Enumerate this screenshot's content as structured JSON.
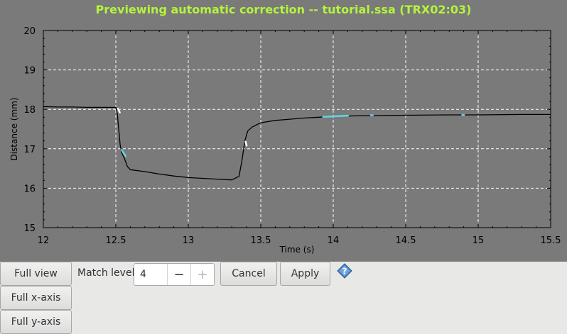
{
  "window_title": "Previewing automatic correction -- tutorial.ssa (TRX02:03)",
  "title_color": "#b4f53a",
  "plot_background": "#7a7a7a",
  "highlight_color": "#5fd6e8",
  "chart_data": {
    "type": "line",
    "xlabel": "Time (s)",
    "ylabel": "Distance (mm)",
    "xlim": [
      12,
      15.5
    ],
    "ylim": [
      15,
      20
    ],
    "xticks": [
      12,
      12.5,
      13,
      13.5,
      14,
      14.5,
      15,
      15.5
    ],
    "xtick_labels": [
      "12",
      "12.5",
      "13",
      "13.5",
      "14",
      "14.5",
      "15",
      "15.5"
    ],
    "yticks": [
      15,
      16,
      17,
      18,
      19,
      20
    ],
    "ytick_labels": [
      "15",
      "16",
      "17",
      "18",
      "19",
      "20"
    ],
    "grid": true,
    "series": [
      {
        "color": "#000000",
        "x": [
          12.0,
          12.1,
          12.2,
          12.3,
          12.4,
          12.5,
          12.51,
          12.52,
          12.53,
          12.54,
          12.56,
          12.58,
          12.6,
          12.7,
          12.8,
          12.9,
          13.0,
          13.1,
          13.2,
          13.3,
          13.35,
          13.37,
          13.39,
          13.41,
          13.44,
          13.5,
          13.6,
          13.7,
          13.8,
          13.9,
          14.0,
          14.2,
          14.5,
          14.8,
          15.0,
          15.3,
          15.5
        ],
        "y": [
          18.07,
          18.06,
          18.06,
          18.05,
          18.05,
          18.05,
          17.9,
          17.5,
          17.1,
          16.9,
          16.75,
          16.55,
          16.47,
          16.42,
          16.36,
          16.31,
          16.27,
          16.25,
          16.23,
          16.21,
          16.3,
          16.7,
          17.2,
          17.45,
          17.55,
          17.66,
          17.72,
          17.75,
          17.78,
          17.8,
          17.82,
          17.84,
          17.85,
          17.86,
          17.86,
          17.87,
          17.87
        ]
      }
    ],
    "highlights": [
      {
        "x": [
          12.515,
          12.525
        ],
        "y": [
          18.02,
          17.92
        ],
        "color": "#ffffff"
      },
      {
        "x": [
          12.54,
          12.565
        ],
        "y": [
          16.97,
          16.82
        ],
        "color": "#5fd6e8"
      },
      {
        "x": [
          13.395,
          13.4
        ],
        "y": [
          17.18,
          17.08
        ],
        "color": "#ffffff"
      },
      {
        "x": [
          13.93,
          14.1
        ],
        "y": [
          17.81,
          17.84
        ],
        "color": "#5fd6e8"
      },
      {
        "x": [
          14.26,
          14.27
        ],
        "y": [
          17.85,
          17.85
        ],
        "color": "#5fd6e8"
      },
      {
        "x": [
          14.89,
          14.9
        ],
        "y": [
          17.86,
          17.86
        ],
        "color": "#5fd6e8"
      }
    ]
  },
  "controls": {
    "full_view_label": "Full view",
    "match_level_label": "Match level",
    "match_level_value": "4",
    "minus_label": "−",
    "plus_label": "+",
    "cancel_label": "Cancel",
    "apply_label": "Apply",
    "full_x_axis_label": "Full x-axis",
    "full_y_axis_label": "Full y-axis",
    "help_icon": "help-icon",
    "help_color": "#4a86c6"
  }
}
